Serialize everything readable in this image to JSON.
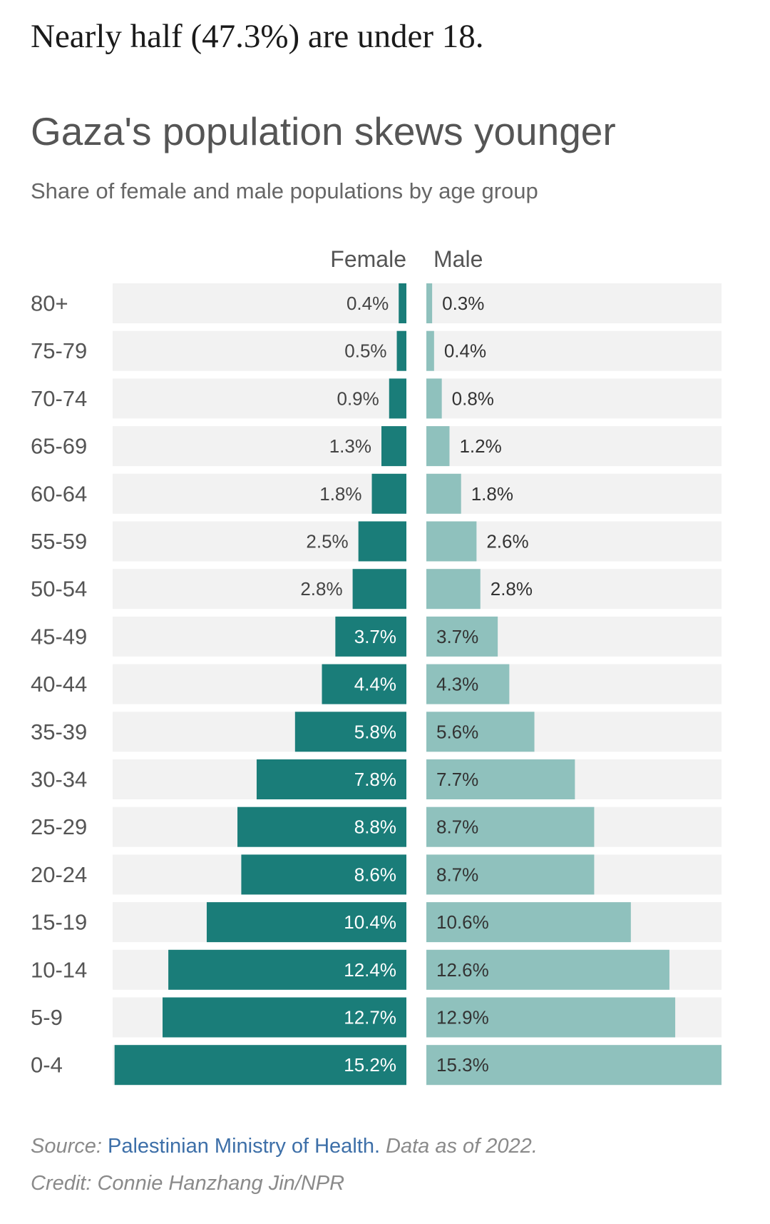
{
  "headline": "Nearly half (47.3%) are under 18.",
  "chart_data": {
    "type": "bar",
    "title": "Gaza's population skews younger",
    "subtitle": "Share of female and male populations by age group",
    "categories": [
      "80+",
      "75-79",
      "70-74",
      "65-69",
      "60-64",
      "55-59",
      "50-54",
      "45-49",
      "40-44",
      "35-39",
      "30-34",
      "25-29",
      "20-24",
      "15-19",
      "10-14",
      "5-9",
      "0-4"
    ],
    "series": [
      {
        "name": "Female",
        "color": "#1a7d79",
        "values": [
          0.4,
          0.5,
          0.9,
          1.3,
          1.8,
          2.5,
          2.8,
          3.7,
          4.4,
          5.8,
          7.8,
          8.8,
          8.6,
          10.4,
          12.4,
          12.7,
          15.2
        ],
        "labels": [
          "0.4%",
          "0.5%",
          "0.9%",
          "1.3%",
          "1.8%",
          "2.5%",
          "2.8%",
          "3.7%",
          "4.4%",
          "5.8%",
          "7.8%",
          "8.8%",
          "8.6%",
          "10.4%",
          "12.4%",
          "12.7%",
          "15.2%"
        ]
      },
      {
        "name": "Male",
        "color": "#8fc1bd",
        "values": [
          0.3,
          0.4,
          0.8,
          1.2,
          1.8,
          2.6,
          2.8,
          3.7,
          4.3,
          5.6,
          7.7,
          8.7,
          8.7,
          10.6,
          12.6,
          12.9,
          15.3
        ],
        "labels": [
          "0.3%",
          "0.4%",
          "0.8%",
          "1.2%",
          "1.8%",
          "2.6%",
          "2.8%",
          "3.7%",
          "4.3%",
          "5.6%",
          "7.7%",
          "8.7%",
          "8.7%",
          "10.6%",
          "12.6%",
          "12.9%",
          "15.3%"
        ]
      }
    ],
    "xlim": [
      0,
      15.3
    ],
    "track_color": "#f2f2f2"
  },
  "source": {
    "prefix": "Source: ",
    "link_text": "Palestinian Ministry of Health.",
    "suffix": " Data as of 2022."
  },
  "credit": "Credit: Connie Hanzhang Jin/NPR"
}
